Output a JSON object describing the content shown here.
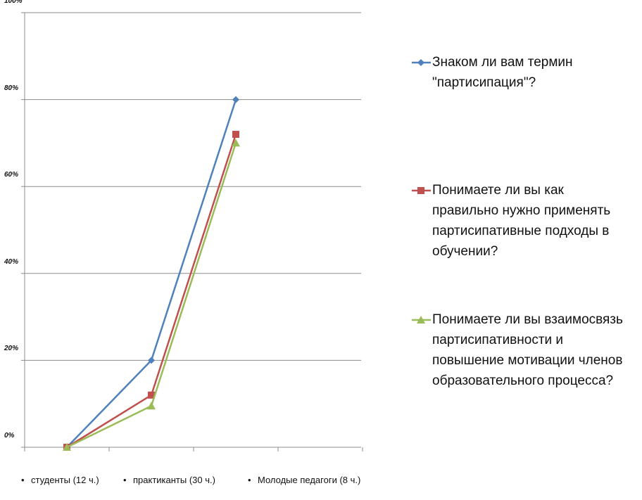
{
  "chart_data": {
    "type": "line",
    "title": "",
    "xlabel": "",
    "ylabel": "",
    "categories": [
      "студенты  (12 ч.)",
      "практиканты (30 ч.)",
      "Молодые  педагоги (8 ч.)"
    ],
    "yticks": [
      "0%",
      "20%",
      "40%",
      "60%",
      "80%",
      "100%"
    ],
    "ylim": [
      0,
      100
    ],
    "grid": true,
    "legend_position": "right",
    "series": [
      {
        "name": "Знаком ли вам термин \"партисипация\"?",
        "color": "#4f81bd",
        "marker": "diamond",
        "values": [
          0,
          20,
          80
        ]
      },
      {
        "name": "Понимаете ли вы как правильно нужно применять партисипативные подходы в обучении?",
        "color": "#c0504d",
        "marker": "square",
        "values": [
          0,
          12,
          72
        ]
      },
      {
        "name": "Понимаете ли вы взаимосвязь партисипативности и повышение мотивации членов образовательного процесса?",
        "color": "#9bbb59",
        "marker": "triangle",
        "values": [
          0,
          9.5,
          70
        ]
      }
    ]
  }
}
